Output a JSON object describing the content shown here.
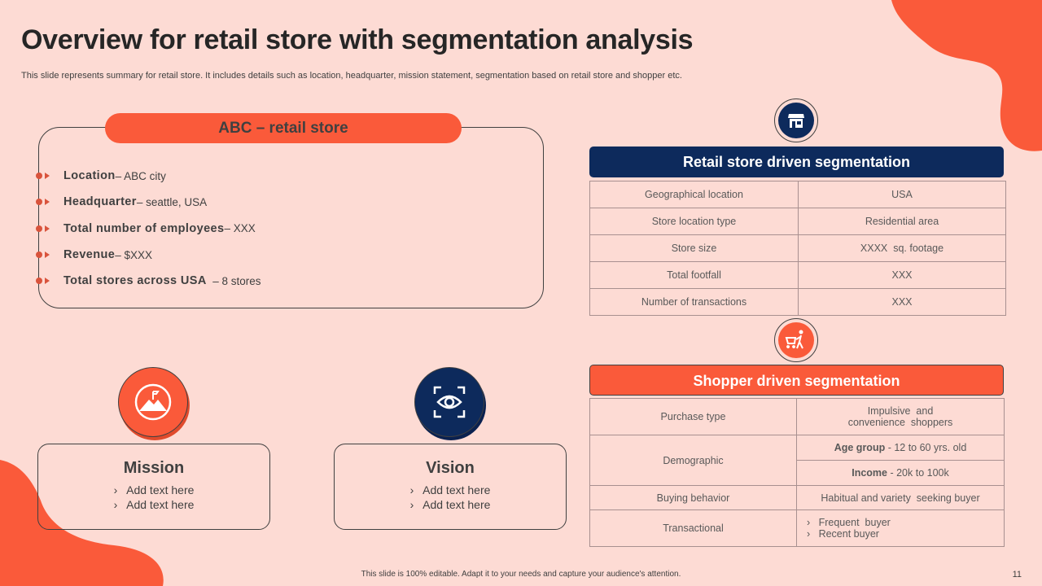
{
  "title": "Overview for retail store with segmentation analysis",
  "subtitle": "This slide represents summary for retail store. It includes details such as location, headquarter, mission statement, segmentation based on retail store and shopper etc.",
  "colors": {
    "background": "#fddbd4",
    "accent": "#fa5a3a",
    "navy": "#0d2a5c"
  },
  "store": {
    "title": "ABC – retail store",
    "items": [
      {
        "label": "Location",
        "value": " – ABC city"
      },
      {
        "label": "Headquarter",
        "value": " – seattle, USA"
      },
      {
        "label": "Total number of employees",
        "value": " – XXX"
      },
      {
        "label": "Revenue",
        "value": " – $XXX"
      },
      {
        "label": "Total stores across USA",
        "value": "  – 8 stores"
      }
    ]
  },
  "mission": {
    "title": "Mission",
    "icon": "mountain-flag-icon",
    "items": [
      "›   Add text here",
      "›   Add text here"
    ]
  },
  "vision": {
    "title": "Vision",
    "icon": "eye-focus-icon",
    "items": [
      "›   Add text here",
      "›   Add text here"
    ]
  },
  "retail_seg": {
    "title": "Retail store driven segmentation",
    "icon": "store-icon",
    "rows": [
      [
        "Geographical location",
        "USA"
      ],
      [
        "Store location type",
        "Residential area"
      ],
      [
        "Store size",
        "XXXX  sq. footage"
      ],
      [
        "Total footfall",
        "XXX"
      ],
      [
        "Number of transactions",
        "XXX"
      ]
    ]
  },
  "shopper_seg": {
    "title": "Shopper driven segmentation",
    "icon": "shopping-cart-person-icon",
    "purchase_type": {
      "label": "Purchase type",
      "value_line1": "Impulsive  and",
      "value_line2": "convenience  shoppers"
    },
    "demographic": {
      "label": "Demographic",
      "age_label": "Age group",
      "age_value": " - 12 to 60 yrs. old",
      "income_label": "Income",
      "income_value": " - 20k to 100k"
    },
    "buying": {
      "label": "Buying behavior",
      "value": "Habitual and variety  seeking buyer"
    },
    "transactional": {
      "label": "Transactional",
      "items": [
        "›   Frequent  buyer",
        "›   Recent buyer"
      ]
    }
  },
  "footer": "This slide is 100% editable.  Adapt it to your needs and capture your audience's attention.",
  "page_number": "11"
}
